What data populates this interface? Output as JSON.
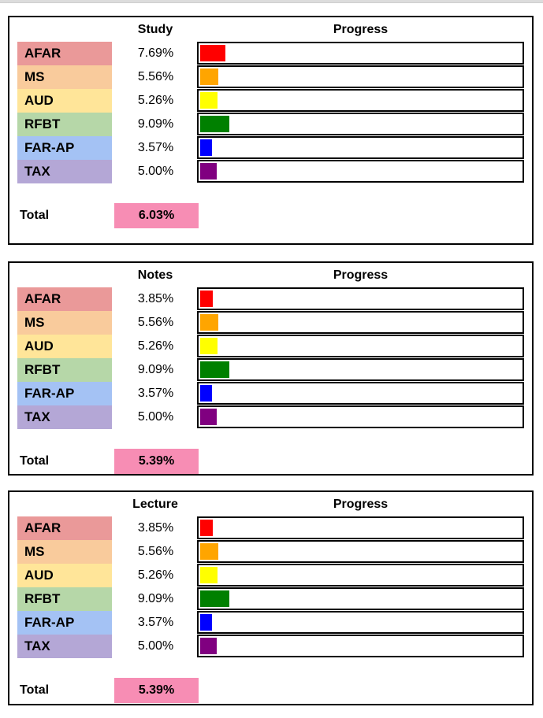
{
  "page": {
    "background": "#ffffff",
    "top_strip_color": "#dcdcdc",
    "panel_border_color": "#000000",
    "total_highlight_color": "#f78db4"
  },
  "sections": [
    {
      "title": "Study",
      "progress_header": "Progress",
      "total_label": "Total",
      "total_value": "6.03%",
      "rows": [
        {
          "label": "AFAR",
          "value": "7.69%",
          "pct": 7.69,
          "label_bg": "#ea9999",
          "bar_color": "#ff0000"
        },
        {
          "label": "MS",
          "value": "5.56%",
          "pct": 5.56,
          "label_bg": "#f9cb9c",
          "bar_color": "#ffa500"
        },
        {
          "label": "AUD",
          "value": "5.26%",
          "pct": 5.26,
          "label_bg": "#ffe599",
          "bar_color": "#ffff00"
        },
        {
          "label": "RFBT",
          "value": "9.09%",
          "pct": 9.09,
          "label_bg": "#b6d7a8",
          "bar_color": "#008000"
        },
        {
          "label": "FAR-AP",
          "value": "3.57%",
          "pct": 3.57,
          "label_bg": "#a4c2f4",
          "bar_color": "#0000ff"
        },
        {
          "label": "TAX",
          "value": "5.00%",
          "pct": 5.0,
          "label_bg": "#b4a7d6",
          "bar_color": "#800080"
        }
      ]
    },
    {
      "title": "Notes",
      "progress_header": "Progress",
      "total_label": "Total",
      "total_value": "5.39%",
      "rows": [
        {
          "label": "AFAR",
          "value": "3.85%",
          "pct": 3.85,
          "label_bg": "#ea9999",
          "bar_color": "#ff0000"
        },
        {
          "label": "MS",
          "value": "5.56%",
          "pct": 5.56,
          "label_bg": "#f9cb9c",
          "bar_color": "#ffa500"
        },
        {
          "label": "AUD",
          "value": "5.26%",
          "pct": 5.26,
          "label_bg": "#ffe599",
          "bar_color": "#ffff00"
        },
        {
          "label": "RFBT",
          "value": "9.09%",
          "pct": 9.09,
          "label_bg": "#b6d7a8",
          "bar_color": "#008000"
        },
        {
          "label": "FAR-AP",
          "value": "3.57%",
          "pct": 3.57,
          "label_bg": "#a4c2f4",
          "bar_color": "#0000ff"
        },
        {
          "label": "TAX",
          "value": "5.00%",
          "pct": 5.0,
          "label_bg": "#b4a7d6",
          "bar_color": "#800080"
        }
      ]
    },
    {
      "title": "Lecture",
      "progress_header": "Progress",
      "total_label": "Total",
      "total_value": "5.39%",
      "rows": [
        {
          "label": "AFAR",
          "value": "3.85%",
          "pct": 3.85,
          "label_bg": "#ea9999",
          "bar_color": "#ff0000"
        },
        {
          "label": "MS",
          "value": "5.56%",
          "pct": 5.56,
          "label_bg": "#f9cb9c",
          "bar_color": "#ffa500"
        },
        {
          "label": "AUD",
          "value": "5.26%",
          "pct": 5.26,
          "label_bg": "#ffe599",
          "bar_color": "#ffff00"
        },
        {
          "label": "RFBT",
          "value": "9.09%",
          "pct": 9.09,
          "label_bg": "#b6d7a8",
          "bar_color": "#008000"
        },
        {
          "label": "FAR-AP",
          "value": "3.57%",
          "pct": 3.57,
          "label_bg": "#a4c2f4",
          "bar_color": "#0000ff"
        },
        {
          "label": "TAX",
          "value": "5.00%",
          "pct": 5.0,
          "label_bg": "#b4a7d6",
          "bar_color": "#800080"
        }
      ]
    }
  ],
  "chart_data": [
    {
      "type": "bar",
      "orientation": "horizontal",
      "title": "Study",
      "value_axis_label": "Progress",
      "categories": [
        "AFAR",
        "MS",
        "AUD",
        "RFBT",
        "FAR-AP",
        "TAX"
      ],
      "values": [
        7.69,
        5.56,
        5.26,
        9.09,
        3.57,
        5.0
      ],
      "value_labels": [
        "7.69%",
        "5.56%",
        "5.26%",
        "9.09%",
        "3.57%",
        "5.00%"
      ],
      "bar_colors": [
        "#ff0000",
        "#ffa500",
        "#ffff00",
        "#008000",
        "#0000ff",
        "#800080"
      ],
      "xlim": [
        0,
        100
      ],
      "grid": false,
      "legend": false,
      "total": 6.03,
      "total_label": "Total 6.03%"
    },
    {
      "type": "bar",
      "orientation": "horizontal",
      "title": "Notes",
      "value_axis_label": "Progress",
      "categories": [
        "AFAR",
        "MS",
        "AUD",
        "RFBT",
        "FAR-AP",
        "TAX"
      ],
      "values": [
        3.85,
        5.56,
        5.26,
        9.09,
        3.57,
        5.0
      ],
      "value_labels": [
        "3.85%",
        "5.56%",
        "5.26%",
        "9.09%",
        "3.57%",
        "5.00%"
      ],
      "bar_colors": [
        "#ff0000",
        "#ffa500",
        "#ffff00",
        "#008000",
        "#0000ff",
        "#800080"
      ],
      "xlim": [
        0,
        100
      ],
      "grid": false,
      "legend": false,
      "total": 5.39,
      "total_label": "Total 5.39%"
    },
    {
      "type": "bar",
      "orientation": "horizontal",
      "title": "Lecture",
      "value_axis_label": "Progress",
      "categories": [
        "AFAR",
        "MS",
        "AUD",
        "RFBT",
        "FAR-AP",
        "TAX"
      ],
      "values": [
        3.85,
        5.56,
        5.26,
        9.09,
        3.57,
        5.0
      ],
      "value_labels": [
        "3.85%",
        "5.56%",
        "5.26%",
        "9.09%",
        "3.57%",
        "5.00%"
      ],
      "bar_colors": [
        "#ff0000",
        "#ffa500",
        "#ffff00",
        "#008000",
        "#0000ff",
        "#800080"
      ],
      "xlim": [
        0,
        100
      ],
      "grid": false,
      "legend": false,
      "total": 5.39,
      "total_label": "Total 5.39%"
    }
  ]
}
